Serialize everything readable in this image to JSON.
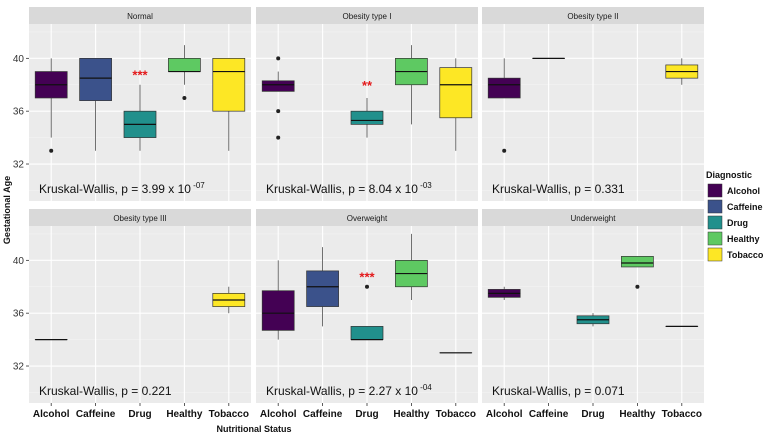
{
  "chart_data": {
    "type": "boxplot",
    "x_title": "Nutritional Status",
    "y_title": "Gestational Age",
    "ylim": [
      29.2,
      42.6
    ],
    "yticks": [
      32,
      36,
      40
    ],
    "categories": [
      "Alcohol",
      "Caffeine",
      "Drug",
      "Healthy",
      "Tobacco"
    ],
    "legend": {
      "title": "Diagnostic",
      "position": "right",
      "items": [
        {
          "label": "Alcohol",
          "color": "#440154"
        },
        {
          "label": "Caffeine",
          "color": "#3b528b"
        },
        {
          "label": "Drug",
          "color": "#21908c"
        },
        {
          "label": "Healthy",
          "color": "#5ec962"
        },
        {
          "label": "Tobacco",
          "color": "#fde725"
        }
      ]
    },
    "panels": [
      {
        "title": "Normal",
        "kw_prefix": "Kruskal-Wallis, p = ",
        "kw_base": "3.99 x 10",
        "kw_sup": "-07",
        "sig_label": "***",
        "sig_category": "Drug",
        "sig_y": 38.4,
        "boxes": [
          {
            "category": "Alcohol",
            "min": 34,
            "q1": 37,
            "median": 38,
            "q3": 39,
            "max": 40,
            "outliers": [
              33
            ]
          },
          {
            "category": "Caffeine",
            "min": 33,
            "q1": 36.8,
            "median": 38.5,
            "q3": 40,
            "max": 40,
            "outliers": []
          },
          {
            "category": "Drug",
            "min": 33,
            "q1": 34,
            "median": 35,
            "q3": 36,
            "max": 38,
            "outliers": []
          },
          {
            "category": "Healthy",
            "min": 38,
            "q1": 39,
            "median": 39,
            "q3": 40,
            "max": 41,
            "outliers": [
              37
            ]
          },
          {
            "category": "Tobacco",
            "min": 33,
            "q1": 36,
            "median": 39,
            "q3": 40,
            "max": 40,
            "outliers": []
          }
        ]
      },
      {
        "title": "Obesity type I",
        "kw_prefix": "Kruskal-Wallis, p = ",
        "kw_base": "8.04 x 10",
        "kw_sup": "-03",
        "sig_label": "**",
        "sig_category": "Drug",
        "sig_y": 37.6,
        "boxes": [
          {
            "category": "Alcohol",
            "min": 37.5,
            "q1": 37.5,
            "median": 38,
            "q3": 38.3,
            "max": 39,
            "outliers": [
              40,
              36,
              34
            ]
          },
          {
            "category": "Drug",
            "min": 34,
            "q1": 35,
            "median": 35.3,
            "q3": 36,
            "max": 37,
            "outliers": []
          },
          {
            "category": "Healthy",
            "min": 35,
            "q1": 38,
            "median": 39,
            "q3": 40,
            "max": 41,
            "outliers": []
          },
          {
            "category": "Tobacco",
            "min": 33,
            "q1": 35.5,
            "median": 38,
            "q3": 39.3,
            "max": 40,
            "outliers": []
          }
        ]
      },
      {
        "title": "Obesity type II",
        "kw_prefix": "Kruskal-Wallis, p = ",
        "kw_base": "0.331",
        "kw_sup": "",
        "sig_label": "",
        "sig_category": "",
        "sig_y": 0,
        "boxes": [
          {
            "category": "Alcohol",
            "min": 37,
            "q1": 37,
            "median": 38,
            "q3": 38.5,
            "max": 40,
            "outliers": [
              33
            ]
          },
          {
            "category": "Caffeine",
            "min": 40,
            "q1": 40,
            "median": 40,
            "q3": 40,
            "max": 40,
            "outliers": []
          },
          {
            "category": "Tobacco",
            "min": 38,
            "q1": 38.5,
            "median": 39,
            "q3": 39.5,
            "max": 40,
            "outliers": []
          }
        ]
      },
      {
        "title": "Obesity type III",
        "kw_prefix": "Kruskal-Wallis, p = ",
        "kw_base": "0.221",
        "kw_sup": "",
        "sig_label": "",
        "sig_category": "",
        "sig_y": 0,
        "boxes": [
          {
            "category": "Alcohol",
            "min": 34,
            "q1": 34,
            "median": 34,
            "q3": 34,
            "max": 34,
            "outliers": []
          },
          {
            "category": "Tobacco",
            "min": 36,
            "q1": 36.5,
            "median": 37,
            "q3": 37.5,
            "max": 38,
            "outliers": []
          }
        ]
      },
      {
        "title": "Overweight",
        "kw_prefix": "Kruskal-Wallis, p = ",
        "kw_base": "2.27 x 10",
        "kw_sup": "-04",
        "sig_label": "***",
        "sig_category": "Drug",
        "sig_y": 38.4,
        "boxes": [
          {
            "category": "Alcohol",
            "min": 34,
            "q1": 34.7,
            "median": 36,
            "q3": 37.7,
            "max": 40,
            "outliers": []
          },
          {
            "category": "Caffeine",
            "min": 35,
            "q1": 36.5,
            "median": 38,
            "q3": 39.2,
            "max": 41,
            "outliers": []
          },
          {
            "category": "Drug",
            "min": 34,
            "q1": 34,
            "median": 34,
            "q3": 35,
            "max": 35,
            "outliers": [
              38
            ]
          },
          {
            "category": "Healthy",
            "min": 37,
            "q1": 38,
            "median": 39,
            "q3": 40,
            "max": 42,
            "outliers": []
          },
          {
            "category": "Tobacco",
            "min": 33,
            "q1": 33,
            "median": 33,
            "q3": 33,
            "max": 33,
            "outliers": []
          }
        ]
      },
      {
        "title": "Underweight",
        "kw_prefix": "Kruskal-Wallis, p = ",
        "kw_base": "0.071",
        "kw_sup": "",
        "sig_label": "",
        "sig_category": "",
        "sig_y": 0,
        "boxes": [
          {
            "category": "Alcohol",
            "min": 37,
            "q1": 37.2,
            "median": 37.5,
            "q3": 37.8,
            "max": 38,
            "outliers": []
          },
          {
            "category": "Drug",
            "min": 35,
            "q1": 35.2,
            "median": 35.5,
            "q3": 35.8,
            "max": 36,
            "outliers": []
          },
          {
            "category": "Healthy",
            "min": 39.5,
            "q1": 39.5,
            "median": 39.8,
            "q3": 40.3,
            "max": 40.3,
            "outliers": [
              38
            ]
          },
          {
            "category": "Tobacco",
            "min": 35,
            "q1": 35,
            "median": 35,
            "q3": 35,
            "max": 35,
            "outliers": []
          }
        ]
      }
    ]
  }
}
